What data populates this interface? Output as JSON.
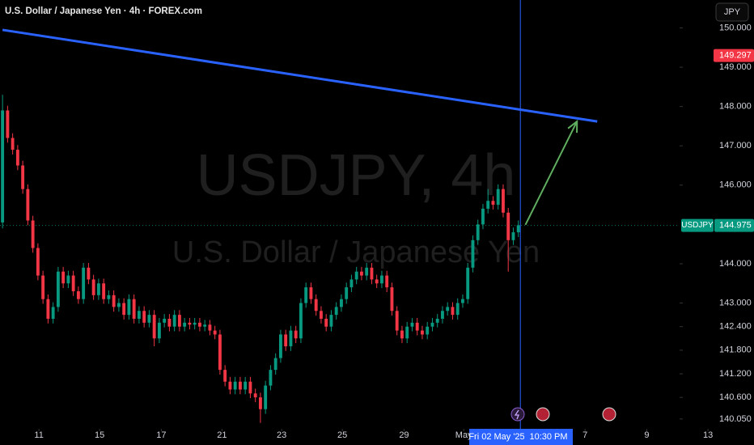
{
  "chart_data": {
    "type": "candlestick",
    "title": "U.S. Dollar / Japanese Yen · 4h · FOREX.com",
    "watermark": {
      "symbol": "USDJPY, 4h",
      "description": "U.S. Dollar / Japanese Yen"
    },
    "currency_button": "JPY",
    "up_color": "#089981",
    "down_color": "#f23645",
    "open": [
      145.05,
      147.9,
      147.2,
      146.9,
      146.5,
      145.9,
      145.1,
      144.4,
      143.7,
      143.1,
      142.6,
      142.9,
      143.8,
      143.5,
      143.7,
      143.3,
      143.1,
      143.9,
      143.6,
      143.2,
      143.5,
      143.1,
      143.2,
      142.9,
      143.0,
      142.7,
      143.1,
      142.6,
      142.8,
      142.5,
      142.7,
      142.1,
      142.5,
      142.6,
      142.4,
      142.7,
      142.4,
      142.5,
      142.45,
      142.5,
      142.4,
      142.45,
      142.3,
      142.2,
      141.3,
      141.0,
      140.8,
      141.0,
      140.8,
      141.0,
      140.7,
      140.6,
      140.3,
      140.9,
      141.3,
      141.6,
      142.2,
      141.9,
      142.3,
      142.1,
      143.0,
      143.4,
      143.1,
      142.8,
      142.6,
      142.4,
      142.7,
      142.9,
      143.1,
      143.4,
      143.6,
      143.8,
      143.7,
      143.9,
      143.6,
      143.5,
      143.7,
      143.4,
      142.8,
      142.3,
      142.1,
      142.4,
      142.5,
      142.3,
      142.2,
      142.4,
      142.5,
      142.6,
      142.8,
      142.9,
      142.7,
      143.0,
      143.1,
      143.9,
      144.6,
      145.0,
      145.4,
      145.6,
      145.5,
      145.9,
      145.3,
      144.6,
      144.8
    ],
    "high": [
      148.3,
      148.02,
      147.32,
      147.02,
      146.62,
      146.02,
      145.22,
      144.52,
      143.82,
      143.22,
      143.02,
      143.92,
      143.92,
      143.82,
      143.82,
      143.42,
      144.02,
      144.02,
      143.72,
      143.62,
      143.62,
      143.32,
      143.32,
      143.12,
      143.12,
      143.22,
      143.22,
      142.92,
      142.92,
      142.82,
      142.82,
      142.62,
      142.72,
      142.72,
      142.82,
      142.82,
      142.62,
      142.62,
      142.62,
      142.62,
      142.57,
      142.57,
      142.42,
      142.32,
      141.42,
      141.12,
      141.12,
      141.12,
      141.12,
      141.12,
      140.82,
      140.72,
      141.02,
      141.42,
      141.72,
      142.32,
      142.32,
      142.42,
      142.42,
      143.12,
      143.52,
      143.52,
      143.22,
      142.92,
      142.72,
      142.82,
      143.02,
      143.22,
      143.52,
      143.72,
      143.92,
      143.92,
      144.02,
      144.02,
      143.72,
      143.82,
      143.82,
      143.52,
      142.92,
      142.42,
      142.52,
      142.62,
      142.62,
      142.42,
      142.52,
      142.62,
      142.72,
      142.92,
      143.02,
      143.02,
      143.12,
      143.22,
      144.02,
      144.72,
      145.12,
      145.52,
      145.9,
      145.72,
      146.02,
      146.02,
      145.42,
      144.92,
      145.1
    ],
    "low": [
      144.9,
      147.08,
      146.78,
      146.38,
      145.78,
      144.98,
      144.28,
      143.58,
      142.98,
      142.48,
      142.48,
      142.78,
      143.38,
      143.38,
      143.18,
      142.98,
      142.98,
      143.48,
      143.08,
      143.08,
      142.98,
      142.98,
      142.78,
      142.78,
      142.58,
      142.58,
      142.48,
      142.48,
      142.38,
      142.38,
      141.9,
      141.98,
      142.38,
      142.28,
      142.28,
      142.28,
      142.28,
      142.33,
      142.33,
      142.28,
      142.28,
      142.18,
      142.08,
      141.18,
      140.88,
      140.68,
      140.68,
      140.68,
      140.68,
      140.58,
      140.48,
      139.95,
      140.18,
      140.78,
      141.18,
      141.48,
      141.78,
      141.78,
      141.98,
      141.98,
      142.88,
      142.98,
      142.68,
      142.48,
      142.28,
      142.28,
      142.58,
      142.78,
      142.98,
      143.28,
      143.48,
      143.58,
      143.58,
      143.48,
      143.38,
      143.38,
      143.28,
      142.68,
      142.18,
      141.98,
      141.98,
      142.28,
      142.18,
      142.08,
      142.08,
      142.28,
      142.38,
      142.48,
      142.68,
      142.58,
      142.58,
      142.88,
      142.98,
      143.78,
      144.48,
      144.88,
      145.28,
      145.38,
      145.38,
      145.18,
      143.8,
      144.48,
      144.68
    ],
    "close": [
      147.9,
      147.2,
      146.9,
      146.5,
      145.9,
      145.1,
      144.4,
      143.7,
      143.1,
      142.6,
      142.9,
      143.8,
      143.5,
      143.7,
      143.3,
      143.1,
      143.9,
      143.6,
      143.2,
      143.5,
      143.1,
      143.2,
      142.9,
      143.0,
      142.7,
      143.1,
      142.6,
      142.8,
      142.5,
      142.7,
      142.1,
      142.5,
      142.6,
      142.4,
      142.7,
      142.4,
      142.5,
      142.45,
      142.5,
      142.4,
      142.45,
      142.3,
      142.2,
      141.3,
      141.0,
      140.8,
      141.0,
      140.8,
      141.0,
      140.7,
      140.6,
      140.3,
      140.9,
      141.3,
      141.6,
      142.2,
      141.9,
      142.3,
      142.1,
      143.0,
      143.4,
      143.1,
      142.8,
      142.6,
      142.4,
      142.7,
      142.9,
      143.1,
      143.4,
      143.6,
      143.8,
      143.7,
      143.9,
      143.6,
      143.5,
      143.7,
      143.4,
      142.8,
      142.3,
      142.1,
      142.4,
      142.5,
      142.3,
      142.2,
      142.4,
      142.5,
      142.6,
      142.8,
      142.9,
      142.7,
      143.0,
      143.1,
      143.9,
      144.6,
      145.0,
      145.4,
      145.6,
      145.5,
      145.9,
      145.3,
      144.6,
      144.8,
      144.98
    ],
    "ylim": [
      139.8,
      150.71
    ],
    "yticks": [
      {
        "value": 150,
        "label": "150.000"
      },
      {
        "value": 149,
        "label": "149.000"
      },
      {
        "value": 148,
        "label": "148.000"
      },
      {
        "value": 147,
        "label": "147.000"
      },
      {
        "value": 146,
        "label": "146.000"
      },
      {
        "value": 144,
        "label": "144.000"
      },
      {
        "value": 143,
        "label": "143.000"
      },
      {
        "value": 142.4,
        "label": "142.400"
      },
      {
        "value": 141.8,
        "label": "141.800"
      },
      {
        "value": 141.2,
        "label": "141.200"
      },
      {
        "value": 140.6,
        "label": "140.600"
      },
      {
        "value": 140.05,
        "label": "140.050"
      }
    ],
    "xlim": [
      -0.5,
      148.6
    ],
    "xticks": [
      {
        "value": 7.2,
        "label": "11"
      },
      {
        "value": 19.2,
        "label": "15"
      },
      {
        "value": 31.4,
        "label": "17"
      },
      {
        "value": 43.4,
        "label": "21"
      },
      {
        "value": 55.2,
        "label": "23"
      },
      {
        "value": 67.2,
        "label": "25"
      },
      {
        "value": 79.4,
        "label": "29"
      },
      {
        "value": 91.2,
        "label": "May"
      },
      {
        "value": 115.2,
        "label": "7"
      },
      {
        "value": 127.4,
        "label": "9"
      },
      {
        "value": 139.5,
        "label": "13"
      }
    ],
    "trend_line": {
      "x": [
        0,
        117.6
      ],
      "y": [
        149.95,
        147.62
      ],
      "color": "#2962ff"
    },
    "arrow": {
      "x": [
        103.4,
        113.6
      ],
      "y": [
        144.99,
        147.62
      ],
      "color": "#5fae5f"
    },
    "crosshair": {
      "x": 102.4,
      "color": "#2962ff",
      "date_label": "Fri 02 May '25",
      "time_label": "10:30 PM"
    },
    "last_price": {
      "symbol": "USDJPY",
      "value": 144.975
    },
    "alert_price": {
      "value": 149.297
    }
  }
}
